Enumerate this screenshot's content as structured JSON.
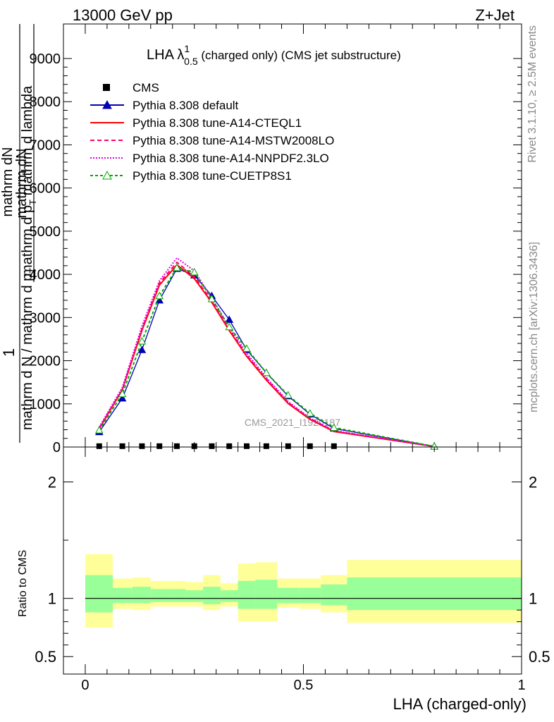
{
  "header": {
    "left": "13000 GeV pp",
    "right": "Z+Jet"
  },
  "side_text": {
    "rivet": "Rivet 3.1.10, ≥ 2.5M events",
    "mcplots": "mcplots.cern.ch [arXiv:1306.3436]"
  },
  "chart_data": [
    {
      "type": "line",
      "panel": "main",
      "title_main": "LHA λ",
      "title_sup": "1",
      "title_sub": "0.5",
      "title_suffix": " (charged only) (CMS jet substructure)",
      "watermark": "CMS_2021_I1920187",
      "ylabel": {
        "numerator": "1",
        "frac_top": "mathrm d",
        "frac_N": "N",
        "frac_bot": "mathrm d N / mathrm d p",
        "frac_T": "T",
        "deriv_top": "mathrm d",
        "deriv_N": "N",
        "deriv_bot": "mathrm d p",
        "deriv_T": "T",
        "deriv_tail": " mathrm d lambda"
      },
      "xlim": [
        -0.05,
        1.0
      ],
      "ylim": [
        0,
        9800
      ],
      "yticks": [
        0,
        1000,
        2000,
        3000,
        4000,
        5000,
        6000,
        7000,
        8000,
        9000
      ],
      "ytick_labels": [
        "0",
        "1000",
        "2000",
        "3000",
        "4000",
        "5000",
        "6000",
        "7000",
        "8000",
        "9000"
      ],
      "x": [
        0.032,
        0.085,
        0.13,
        0.17,
        0.21,
        0.25,
        0.29,
        0.33,
        0.37,
        0.415,
        0.465,
        0.515,
        0.57,
        0.8
      ],
      "legend_position": "top-left",
      "cms": {
        "name": "CMS",
        "x": [
          0.032,
          0.085,
          0.13,
          0.17,
          0.21,
          0.25,
          0.29,
          0.33,
          0.37,
          0.415,
          0.465,
          0.515,
          0.57
        ],
        "values": [
          20,
          20,
          20,
          20,
          20,
          20,
          20,
          20,
          20,
          20,
          20,
          20,
          20
        ]
      },
      "series": [
        {
          "name": "Pythia 8.308 default",
          "color": "#0000b4",
          "dash": "",
          "marker": "triangle-filled",
          "values": [
            350,
            1130,
            2250,
            3400,
            4130,
            3980,
            3500,
            2950,
            2250,
            1720,
            1180,
            760,
            430,
            15
          ]
        },
        {
          "name": "Pythia 8.308 tune-A14-CTEQL1",
          "color": "#ff0000",
          "dash": "",
          "marker": "none",
          "values": [
            420,
            1330,
            2700,
            3750,
            4220,
            3900,
            3350,
            2700,
            2100,
            1550,
            1010,
            640,
            360,
            12
          ]
        },
        {
          "name": "Pythia 8.308 tune-A14-MSTW2008LO",
          "color": "#ff0066",
          "dash": "6,4",
          "marker": "none",
          "values": [
            440,
            1340,
            2730,
            3800,
            4280,
            3950,
            3380,
            2730,
            2130,
            1580,
            1030,
            660,
            370,
            12
          ]
        },
        {
          "name": "Pythia 8.308 tune-A14-NNPDF2.3LO",
          "color": "#e000e0",
          "dash": "2,2",
          "marker": "none",
          "values": [
            460,
            1380,
            2800,
            3850,
            4380,
            4080,
            3450,
            2780,
            2170,
            1610,
            1050,
            670,
            380,
            12
          ]
        },
        {
          "name": "Pythia 8.308 tune-CUETP8S1",
          "color": "#00aa00",
          "dash": "4,3",
          "marker": "triangle-open",
          "values": [
            390,
            1230,
            2450,
            3500,
            4150,
            4050,
            3430,
            2780,
            2280,
            1720,
            1200,
            780,
            450,
            15
          ]
        }
      ]
    },
    {
      "type": "area",
      "panel": "ratio",
      "ylabel": "Ratio to CMS",
      "xlabel": "LHA (charged-only)",
      "xlim": [
        -0.05,
        1.0
      ],
      "ylim": [
        0.35,
        2.3
      ],
      "yticks": [
        0.5,
        1,
        2
      ],
      "ytick_labels": [
        "0.5",
        "1",
        "2"
      ],
      "xticks": [
        0,
        0.5,
        1
      ],
      "xtick_labels": [
        "0",
        "0.5",
        "1"
      ],
      "band_colors": {
        "stat": "#99ff99",
        "total": "#ffff99",
        "line": "#000000"
      },
      "bins": [
        {
          "lo": 0.0,
          "hi": 0.063,
          "in_lo": 0.88,
          "in_hi": 1.2,
          "out_lo": 0.75,
          "out_hi": 1.38
        },
        {
          "lo": 0.063,
          "hi": 0.108,
          "in_lo": 0.96,
          "in_hi": 1.09,
          "out_lo": 0.91,
          "out_hi": 1.17
        },
        {
          "lo": 0.108,
          "hi": 0.15,
          "in_lo": 0.96,
          "in_hi": 1.1,
          "out_lo": 0.9,
          "out_hi": 1.18
        },
        {
          "lo": 0.15,
          "hi": 0.19,
          "in_lo": 0.97,
          "in_hi": 1.08,
          "out_lo": 0.93,
          "out_hi": 1.15
        },
        {
          "lo": 0.19,
          "hi": 0.23,
          "in_lo": 0.97,
          "in_hi": 1.08,
          "out_lo": 0.93,
          "out_hi": 1.15
        },
        {
          "lo": 0.23,
          "hi": 0.27,
          "in_lo": 0.97,
          "in_hi": 1.07,
          "out_lo": 0.93,
          "out_hi": 1.14
        },
        {
          "lo": 0.27,
          "hi": 0.31,
          "in_lo": 0.95,
          "in_hi": 1.1,
          "out_lo": 0.9,
          "out_hi": 1.2
        },
        {
          "lo": 0.31,
          "hi": 0.35,
          "in_lo": 0.97,
          "in_hi": 1.07,
          "out_lo": 0.93,
          "out_hi": 1.13
        },
        {
          "lo": 0.35,
          "hi": 0.39,
          "in_lo": 0.91,
          "in_hi": 1.15,
          "out_lo": 0.8,
          "out_hi": 1.3
        },
        {
          "lo": 0.39,
          "hi": 0.44,
          "in_lo": 0.91,
          "in_hi": 1.16,
          "out_lo": 0.8,
          "out_hi": 1.31
        },
        {
          "lo": 0.44,
          "hi": 0.49,
          "in_lo": 0.96,
          "in_hi": 1.09,
          "out_lo": 0.92,
          "out_hi": 1.17
        },
        {
          "lo": 0.49,
          "hi": 0.54,
          "in_lo": 0.96,
          "in_hi": 1.09,
          "out_lo": 0.91,
          "out_hi": 1.17
        },
        {
          "lo": 0.54,
          "hi": 0.6,
          "in_lo": 0.94,
          "in_hi": 1.12,
          "out_lo": 0.88,
          "out_hi": 1.2
        },
        {
          "lo": 0.6,
          "hi": 1.0,
          "in_lo": 0.9,
          "in_hi": 1.18,
          "out_lo": 0.79,
          "out_hi": 1.33
        }
      ]
    }
  ]
}
